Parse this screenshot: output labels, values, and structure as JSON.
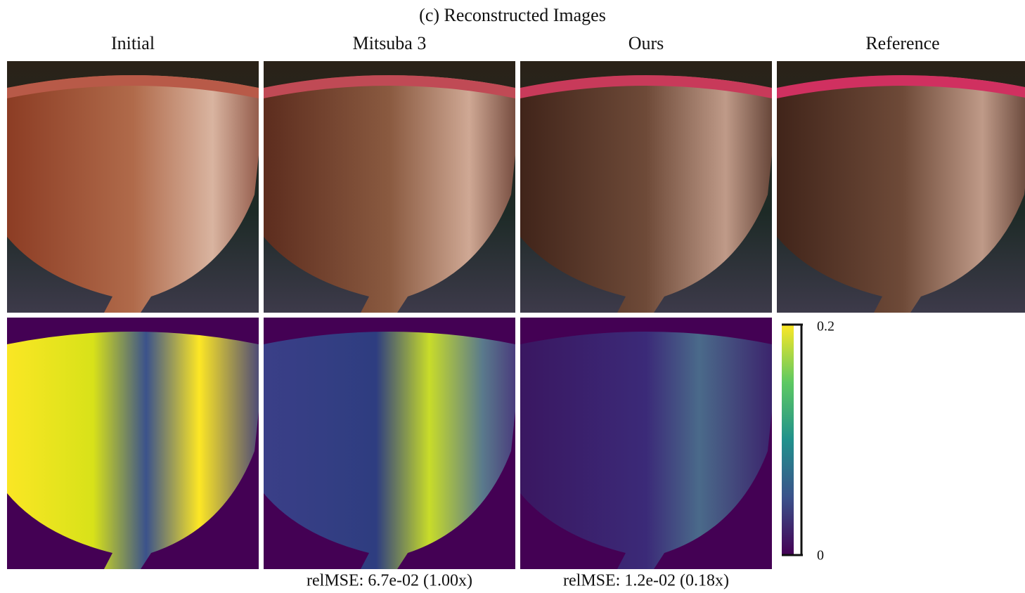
{
  "figure": {
    "title": "(c) Reconstructed Images",
    "columns": [
      "Initial",
      "Mitsuba 3",
      "Ours",
      "Reference"
    ],
    "captions": [
      "relMSE: 6.7e-02 (1.00x)",
      "relMSE: 1.2e-02 (0.18x)"
    ],
    "colorbar": {
      "max_label": "0.2",
      "min_label": "0"
    }
  }
}
